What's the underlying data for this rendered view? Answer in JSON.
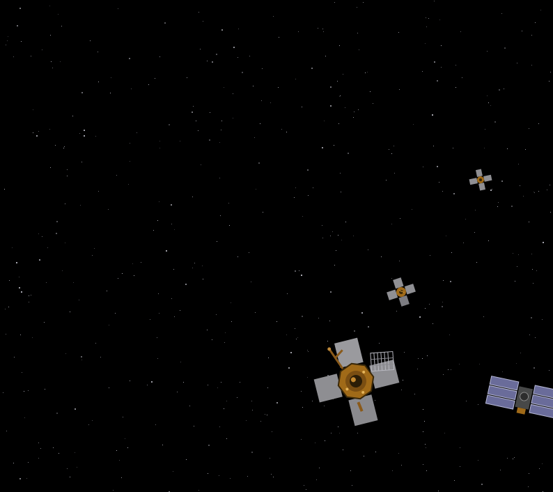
{
  "scene": {
    "background_color": "#000000",
    "star_color": "#c8c8d2",
    "objects": [
      {
        "kind": "satellite-cross-panels",
        "name": "distant-satellite"
      },
      {
        "kind": "satellite-cross-panels",
        "name": "mid-distance-satellite"
      },
      {
        "kind": "satellite-cross-panels-with-antenna",
        "name": "near-satellite"
      },
      {
        "kind": "satellite-solar-arrays",
        "name": "edge-satellite"
      }
    ],
    "colors": {
      "panel_gray": "#8f8f93",
      "panel_shade": "#5e5e62",
      "bus_gold": "#a06a18",
      "bus_dark": "#3a2808",
      "solar_blue": "#6a6c9a",
      "solar_light": "#b7b9d6"
    }
  }
}
